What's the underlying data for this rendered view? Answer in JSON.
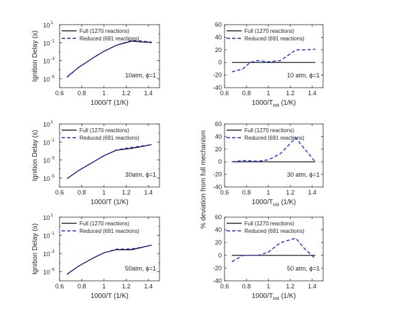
{
  "figure": {
    "shared_ylabel_right": "% deviation from full mechanism"
  },
  "chart_data": [
    {
      "type": "line",
      "panel": "delay-10atm",
      "yscale": "log",
      "ylabel": "Ignition Delay (s)",
      "xlabel": "1000/T (1/K)",
      "xlim": [
        0.6,
        1.5
      ],
      "ylim": [
        1e-06,
        10
      ],
      "xticks": [
        "0.6",
        "0.8",
        "1",
        "1.2",
        "1.4"
      ],
      "yticks": [
        {
          "v": 1e-05,
          "t": "10",
          "e": "-5"
        },
        {
          "v": 0.001,
          "t": "10",
          "e": "-3"
        },
        {
          "v": 0.1,
          "t": "10",
          "e": "-1"
        },
        {
          "v": 10,
          "t": "10",
          "e": "1"
        }
      ],
      "annotation": {
        "text": "10atm, ",
        "phi": "ϕ=1"
      },
      "series": [
        {
          "name": "Full (1270 reactions)",
          "color": "#000000",
          "style": "solid",
          "x": [
            0.667,
            0.769,
            0.909,
            1.0,
            1.111,
            1.25,
            1.333,
            1.429
          ],
          "y": [
            1.6e-05,
            0.00017,
            0.0023,
            0.011,
            0.05,
            0.15,
            0.12,
            0.1
          ]
        },
        {
          "name": "Reduced (691 reactions)",
          "color": "#1f2bd1",
          "style": "dashed",
          "x": [
            0.667,
            0.769,
            0.909,
            1.0,
            1.111,
            1.25,
            1.333,
            1.429
          ],
          "y": [
            1.4e-05,
            0.00017,
            0.0023,
            0.011,
            0.05,
            0.18,
            0.15,
            0.12
          ]
        }
      ]
    },
    {
      "type": "line",
      "panel": "dev-10atm",
      "yscale": "linear",
      "ylabel": "",
      "xlabel": "1000/T",
      "xlabel_sub": "init",
      "xlabel_tail": " (1/K)",
      "xlim": [
        0.6,
        1.5
      ],
      "ylim": [
        -40,
        60
      ],
      "xticks": [
        "0.6",
        "0.8",
        "1",
        "1.2",
        "1.4"
      ],
      "yticks": [
        "-40",
        "-20",
        "0",
        "20",
        "40",
        "60"
      ],
      "annotation": {
        "text": "10 atm, ",
        "phi": "ϕ=1"
      },
      "series": [
        {
          "name": "Full (1270 reactions)",
          "color": "#000000",
          "style": "solid",
          "x": [
            0.667,
            1.429
          ],
          "y": [
            0,
            0
          ]
        },
        {
          "name": "Reduced (691 reactions)",
          "color": "#1f2bd1",
          "style": "dashed",
          "x": [
            0.667,
            0.769,
            0.833,
            0.909,
            1.0,
            1.111,
            1.25,
            1.333,
            1.429
          ],
          "y": [
            -15,
            -10,
            0,
            3,
            1,
            3,
            20,
            20,
            21
          ]
        }
      ]
    },
    {
      "type": "line",
      "panel": "delay-30atm",
      "yscale": "log",
      "ylabel": "Ignition Delay (s)",
      "xlabel": "1000/T (1/K)",
      "xlim": [
        0.6,
        1.5
      ],
      "ylim": [
        1e-06,
        10
      ],
      "xticks": [
        "0.6",
        "0.8",
        "1",
        "1.2",
        "1.4"
      ],
      "yticks": [
        {
          "v": 1e-05,
          "t": "10",
          "e": "-5"
        },
        {
          "v": 0.001,
          "t": "10",
          "e": "-3"
        },
        {
          "v": 0.1,
          "t": "10",
          "e": "-1"
        },
        {
          "v": 10,
          "t": "10",
          "e": "1"
        }
      ],
      "annotation": {
        "text": "30atm, ",
        "phi": "ϕ=1"
      },
      "series": [
        {
          "name": "Full (1270 reactions)",
          "color": "#000000",
          "style": "solid",
          "x": [
            0.667,
            0.769,
            0.909,
            1.0,
            1.111,
            1.25,
            1.333,
            1.429
          ],
          "y": [
            8.5e-06,
            6.5e-05,
            0.00065,
            0.003,
            0.012,
            0.02,
            0.03,
            0.05
          ]
        },
        {
          "name": "Reduced (691 reactions)",
          "color": "#1f2bd1",
          "style": "dashed",
          "x": [
            0.667,
            0.769,
            0.909,
            1.0,
            1.111,
            1.25,
            1.333,
            1.429
          ],
          "y": [
            8.5e-06,
            6.5e-05,
            0.00065,
            0.003,
            0.013,
            0.025,
            0.035,
            0.05
          ]
        }
      ]
    },
    {
      "type": "line",
      "panel": "dev-30atm",
      "yscale": "linear",
      "ylabel": "",
      "xlabel": "1000/T",
      "xlabel_sub": "init",
      "xlabel_tail": " (1/K)",
      "xlim": [
        0.6,
        1.5
      ],
      "ylim": [
        -40,
        60
      ],
      "xticks": [
        "0.6",
        "0.8",
        "1",
        "1.2",
        "1.4"
      ],
      "yticks": [
        "-40",
        "-20",
        "0",
        "20",
        "40",
        "60"
      ],
      "annotation": {
        "text": "30 atm, ",
        "phi": "ϕ=1"
      },
      "series": [
        {
          "name": "Full (1270 reactions)",
          "color": "#000000",
          "style": "solid",
          "x": [
            0.667,
            1.429
          ],
          "y": [
            0,
            0
          ]
        },
        {
          "name": "Reduced (691 reactions)",
          "color": "#1f2bd1",
          "style": "dashed",
          "x": [
            0.667,
            0.769,
            0.909,
            1.0,
            1.111,
            1.25,
            1.333,
            1.429
          ],
          "y": [
            0,
            2,
            1,
            3,
            13,
            38,
            20,
            0
          ]
        }
      ]
    },
    {
      "type": "line",
      "panel": "delay-50atm",
      "yscale": "log",
      "ylabel": "Ignition Delay (s)",
      "xlabel": "1000/T (1/K)",
      "xlim": [
        0.6,
        1.5
      ],
      "ylim": [
        1e-06,
        10
      ],
      "xticks": [
        "0.6",
        "0.8",
        "1",
        "1.2",
        "1.4"
      ],
      "yticks": [
        {
          "v": 1e-05,
          "t": "10",
          "e": "-5"
        },
        {
          "v": 0.001,
          "t": "10",
          "e": "-3"
        },
        {
          "v": 0.1,
          "t": "10",
          "e": "-1"
        },
        {
          "v": 10,
          "t": "10",
          "e": "1"
        }
      ],
      "annotation": {
        "text": "50atm, ",
        "phi": "ϕ=1"
      },
      "series": [
        {
          "name": "Full (1270 reactions)",
          "color": "#000000",
          "style": "solid",
          "x": [
            0.667,
            0.769,
            0.909,
            1.0,
            1.111,
            1.25,
            1.333,
            1.429
          ],
          "y": [
            5.5e-06,
            4e-05,
            0.00035,
            0.0012,
            0.0026,
            0.0026,
            0.0045,
            0.0085
          ]
        },
        {
          "name": "Reduced (691 reactions)",
          "color": "#1f2bd1",
          "style": "dashed",
          "x": [
            0.667,
            0.769,
            0.909,
            1.0,
            1.111,
            1.25,
            1.333,
            1.429
          ],
          "y": [
            5e-06,
            4e-05,
            0.00035,
            0.0012,
            0.003,
            0.0033,
            0.0048,
            0.0082
          ]
        }
      ]
    },
    {
      "type": "line",
      "panel": "dev-50atm",
      "yscale": "linear",
      "ylabel": "",
      "xlabel": "1000/T",
      "xlabel_sub": "init",
      "xlabel_tail": " (1/K)",
      "xlim": [
        0.6,
        1.5
      ],
      "ylim": [
        -40,
        60
      ],
      "xticks": [
        "0.6",
        "0.8",
        "1",
        "1.2",
        "1.4"
      ],
      "yticks": [
        "-40",
        "-20",
        "0",
        "20",
        "40",
        "60"
      ],
      "annotation": {
        "text": "50 atm, ",
        "phi": "ϕ=1"
      },
      "series": [
        {
          "name": "Full (1270 reactions)",
          "color": "#000000",
          "style": "solid",
          "x": [
            0.667,
            1.429
          ],
          "y": [
            0,
            0
          ]
        },
        {
          "name": "Reduced (691 reactions)",
          "color": "#1f2bd1",
          "style": "dashed",
          "x": [
            0.667,
            0.769,
            0.909,
            1.0,
            1.111,
            1.25,
            1.333,
            1.429
          ],
          "y": [
            -10,
            0,
            0,
            5,
            20,
            27,
            10,
            -5
          ]
        }
      ]
    }
  ]
}
